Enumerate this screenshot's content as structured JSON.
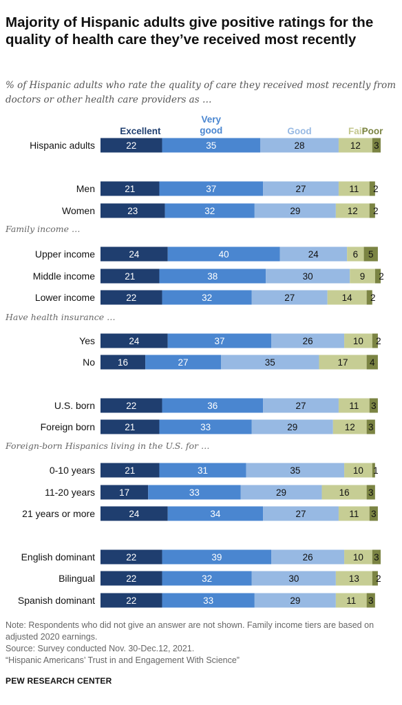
{
  "title": "Majority of Hispanic adults give positive ratings for the quality of health care they’ve received most recently",
  "subtitle": "% of Hispanic adults who rate the quality of care they received most recently from doctors or other health care providers as …",
  "colors": [
    "#1f3e6f",
    "#4a86d0",
    "#97b9e3",
    "#c6cd94",
    "#7b8443"
  ],
  "legend_colors": [
    "#1f3e6f",
    "#4a86d0",
    "#97b9e3",
    "#c3c68c",
    "#7b8443"
  ],
  "chart_data": {
    "type": "bar",
    "orientation": "horizontal",
    "stacked": true,
    "series_names": [
      "Excellent",
      "Very good",
      "Good",
      "Fair",
      "Poor"
    ],
    "rows": [
      {
        "label": "Hispanic adults",
        "values": [
          22,
          35,
          28,
          12,
          3
        ]
      },
      {
        "label": "Men",
        "values": [
          21,
          37,
          27,
          11,
          2
        ]
      },
      {
        "label": "Women",
        "values": [
          23,
          32,
          29,
          12,
          2
        ]
      },
      {
        "label": "Upper income",
        "values": [
          24,
          40,
          24,
          6,
          5
        ]
      },
      {
        "label": "Middle income",
        "values": [
          21,
          38,
          30,
          9,
          2
        ]
      },
      {
        "label": "Lower income",
        "values": [
          22,
          32,
          27,
          14,
          2
        ]
      },
      {
        "label": "Yes",
        "values": [
          24,
          37,
          26,
          10,
          2
        ]
      },
      {
        "label": "No",
        "values": [
          16,
          27,
          35,
          17,
          4
        ]
      },
      {
        "label": "U.S. born",
        "values": [
          22,
          36,
          27,
          11,
          3
        ]
      },
      {
        "label": "Foreign born",
        "values": [
          21,
          33,
          29,
          12,
          3
        ]
      },
      {
        "label": "0-10 years",
        "values": [
          21,
          31,
          35,
          10,
          1
        ]
      },
      {
        "label": "11-20 years",
        "values": [
          17,
          33,
          29,
          16,
          3
        ]
      },
      {
        "label": "21 years or more",
        "values": [
          24,
          34,
          27,
          11,
          3
        ]
      },
      {
        "label": "English dominant",
        "values": [
          22,
          39,
          26,
          10,
          3
        ]
      },
      {
        "label": "Bilingual",
        "values": [
          22,
          32,
          30,
          13,
          2
        ]
      },
      {
        "label": "Spanish dominant",
        "values": [
          22,
          33,
          29,
          11,
          3
        ]
      }
    ],
    "group_labels": [
      "Family income …",
      "Have health insurance …",
      "Foreign-born Hispanics living in the U.S. for …"
    ]
  },
  "footer": {
    "note": "Note: Respondents who did not give an answer are not shown. Family income tiers are based on adjusted 2020 earnings.",
    "source": "Source: Survey conducted Nov. 30-Dec.12, 2021.",
    "report": "“Hispanic Americans’ Trust in and Engagement With Science”",
    "brand": "PEW RESEARCH CENTER"
  }
}
